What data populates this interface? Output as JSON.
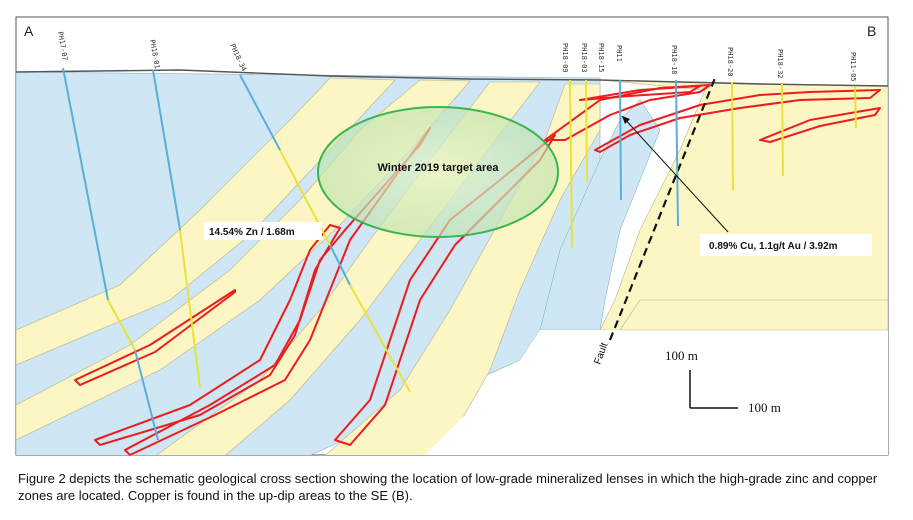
{
  "section": {
    "start_label": "A",
    "end_label": "B"
  },
  "drill_holes": [
    "PH17-07",
    "PH18-01",
    "PH18-34",
    "PH18-09",
    "PH18-03",
    "PH18-15",
    "PH11",
    "PH18-18",
    "PH18-20",
    "PH18-32",
    "PH11-05"
  ],
  "annotations": {
    "target_area": "Winter 2019 target area",
    "zinc_intercept": "14.54% Zn / 1.68m",
    "copper_intercept": "0.89% Cu, 1.1g/t Au / 3.92m",
    "fault": "Fault"
  },
  "scale": {
    "vertical": "100 m",
    "horizontal": "100 m"
  },
  "colors": {
    "blue_unit": "#cfe6f5",
    "yellow_unit": "#fbf6c4",
    "lens": "#ee1c1c",
    "target": "#39b54a",
    "drill_hole_blue": "#5aaedc",
    "drill_hole_yellow": "#e8e23a"
  },
  "caption": "Figure 2 depicts the schematic geological cross section showing the location of low-grade mineralized lenses in which the high-grade zinc and copper zones are located.  Copper is found in the up-dip areas to the SE (B)."
}
